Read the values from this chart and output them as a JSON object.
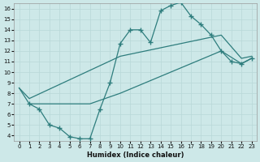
{
  "xlabel": "Humidex (Indice chaleur)",
  "xlim": [
    -0.5,
    23.5
  ],
  "ylim": [
    3.5,
    16.5
  ],
  "xticks": [
    0,
    1,
    2,
    3,
    4,
    5,
    6,
    7,
    8,
    9,
    10,
    11,
    12,
    13,
    14,
    15,
    16,
    17,
    18,
    19,
    20,
    21,
    22,
    23
  ],
  "yticks": [
    4,
    5,
    6,
    7,
    8,
    9,
    10,
    11,
    12,
    13,
    14,
    15,
    16
  ],
  "bg_color": "#cde8e8",
  "line_color": "#2e7d7d",
  "grid_color": "#b8d8d8",
  "line1_x": [
    1,
    2,
    3,
    4,
    5,
    6,
    7,
    8,
    9,
    10,
    11,
    12,
    13,
    14,
    15,
    16,
    17,
    18,
    19,
    20,
    21,
    22,
    23
  ],
  "line1_y": [
    7.0,
    6.5,
    5.0,
    4.7,
    3.9,
    3.7,
    3.7,
    6.5,
    9.0,
    12.7,
    14.0,
    14.0,
    12.8,
    15.8,
    16.3,
    16.6,
    15.3,
    14.5,
    13.5,
    12.0,
    11.0,
    10.8,
    11.3
  ],
  "line2_x": [
    0,
    1,
    10,
    20,
    22,
    23
  ],
  "line2_y": [
    8.5,
    7.5,
    11.5,
    13.5,
    11.3,
    11.5
  ],
  "line3_x": [
    0,
    1,
    7,
    10,
    20,
    22,
    23
  ],
  "line3_y": [
    8.5,
    7.0,
    7.0,
    8.0,
    12.0,
    10.8,
    11.3
  ]
}
